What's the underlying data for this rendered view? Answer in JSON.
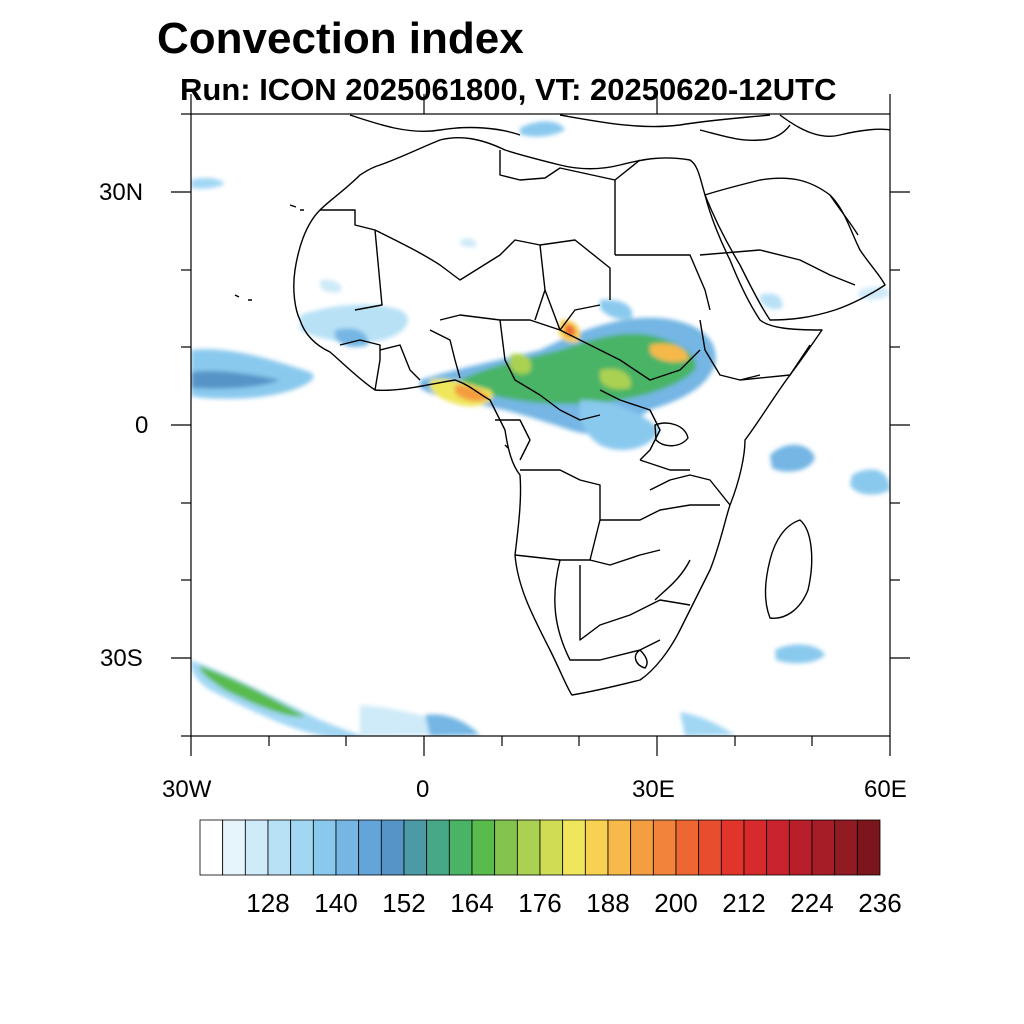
{
  "title": "Convection index",
  "subtitle": "Run: ICON 2025061800,  VT: 20250620-12UTC",
  "map": {
    "lat_labels": [
      "30N",
      "0",
      "30S"
    ],
    "lon_labels": [
      "30W",
      "0",
      "30E",
      "60E"
    ]
  },
  "colorbar": {
    "colors": [
      "#ffffff",
      "#e6f4fc",
      "#cfeaf8",
      "#b8e1f6",
      "#a2d7f4",
      "#8ac9ee",
      "#75b6e4",
      "#63a4d9",
      "#5694c8",
      "#4b9aa6",
      "#47a887",
      "#49b466",
      "#58bb4c",
      "#84c44e",
      "#aad151",
      "#cfdd55",
      "#efe65b",
      "#f8d052",
      "#f6b94a",
      "#f49d41",
      "#f2833a",
      "#ee6733",
      "#e84d2e",
      "#e1352b",
      "#d62a2c",
      "#c9232d",
      "#b81f2b",
      "#a61c27",
      "#921a22",
      "#7d151c"
    ],
    "labels": [
      "128",
      "140",
      "152",
      "164",
      "176",
      "188",
      "200",
      "212",
      "224",
      "236"
    ]
  }
}
